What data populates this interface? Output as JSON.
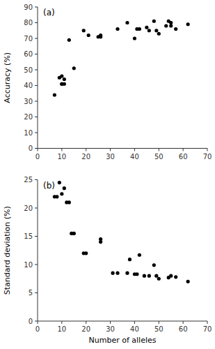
{
  "chart_data": [
    {
      "type": "scatter",
      "x": [
        7,
        9,
        10,
        10,
        10,
        11,
        11,
        13,
        15,
        19,
        21,
        25,
        26,
        26,
        33,
        37,
        40,
        41,
        42,
        45,
        46,
        48,
        49,
        50,
        53,
        54,
        55,
        55,
        57,
        62
      ],
      "y": [
        34,
        45,
        46,
        41,
        41,
        44,
        41,
        69,
        51,
        75,
        72,
        71,
        71,
        72,
        76,
        80,
        70,
        76,
        76,
        77,
        75,
        81,
        75,
        73,
        78,
        81,
        80,
        78,
        76,
        79
      ],
      "ylabel": "Accuracy (%)",
      "xlim": [
        0,
        70
      ],
      "ylim": [
        0,
        90
      ],
      "xticks": [
        0,
        10,
        20,
        30,
        40,
        50,
        60,
        70
      ],
      "yticks": [
        0,
        10,
        20,
        30,
        40,
        50,
        60,
        70,
        80,
        90
      ],
      "annotation": "(a)",
      "color": "black",
      "marker": "circle"
    },
    {
      "type": "scatter",
      "x": [
        7,
        8,
        9,
        10,
        11,
        12,
        13,
        14,
        15,
        19,
        20,
        26,
        26,
        31,
        33,
        37,
        38,
        40,
        41,
        42,
        44,
        46,
        48,
        49,
        50,
        54,
        55,
        57,
        62
      ],
      "y": [
        22,
        22,
        24.5,
        22.5,
        23.5,
        21,
        21,
        15.5,
        15.5,
        12,
        12,
        14,
        14.5,
        8.5,
        8.5,
        8.5,
        10.9,
        8.3,
        8.3,
        11.7,
        8,
        8,
        9.9,
        8,
        7.5,
        7.7,
        8,
        7.8,
        7
      ],
      "xlabel": "Number of alleles",
      "ylabel": "Standard deviation (%)",
      "xlim": [
        0,
        70
      ],
      "ylim": [
        0,
        25
      ],
      "xticks": [
        0,
        10,
        20,
        30,
        40,
        50,
        60,
        70
      ],
      "yticks": [
        0,
        5,
        10,
        15,
        20,
        25
      ],
      "annotation": "(b)",
      "color": "black",
      "marker": "circle"
    }
  ]
}
